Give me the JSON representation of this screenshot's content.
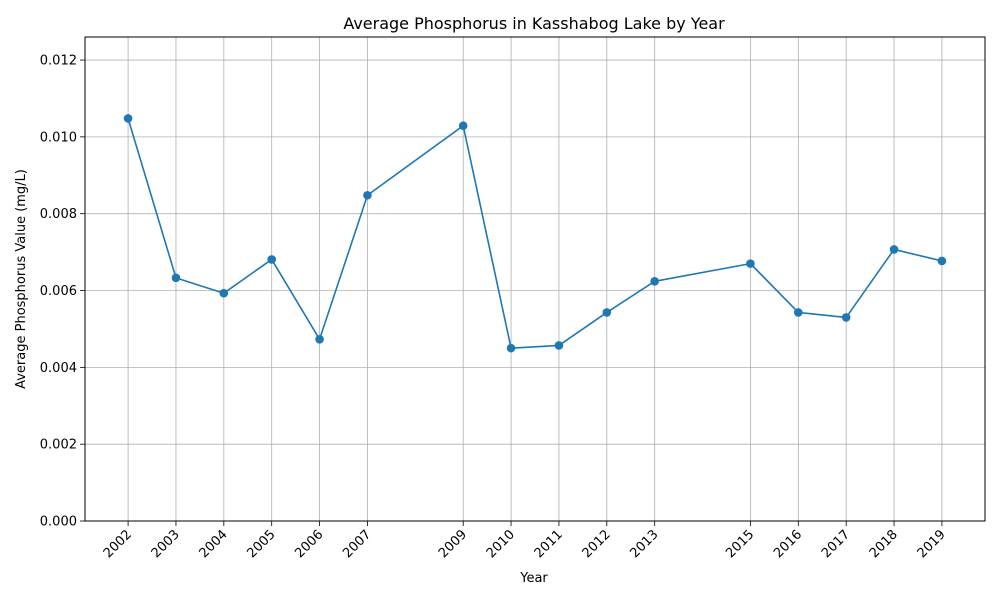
{
  "chart_data": {
    "type": "line",
    "title": "Average Phosphorus in Kasshabog Lake by Year",
    "xlabel": "Year",
    "ylabel": "Average Phosphorus Value (mg/L)",
    "x": [
      2002,
      2003,
      2004,
      2005,
      2006,
      2007,
      2009,
      2010,
      2011,
      2012,
      2013,
      2015,
      2016,
      2017,
      2018,
      2019
    ],
    "series": [
      {
        "name": "",
        "values": [
          0.01048,
          0.00633,
          0.00593,
          0.00681,
          0.00473,
          0.00848,
          0.01029,
          0.0045,
          0.00457,
          0.00543,
          0.00624,
          0.0067,
          0.00543,
          0.0053,
          0.00707,
          0.00677
        ],
        "color": "#1f77b4"
      }
    ],
    "xlim": [
      2001.1,
      2019.9
    ],
    "ylim": [
      0,
      0.0126
    ],
    "yticks": [
      "0.000",
      "0.002",
      "0.004",
      "0.006",
      "0.008",
      "0.010",
      "0.012"
    ],
    "ytick_values": [
      0,
      0.002,
      0.004,
      0.006,
      0.008,
      0.01,
      0.012
    ],
    "grid": true,
    "marker": "circle"
  }
}
